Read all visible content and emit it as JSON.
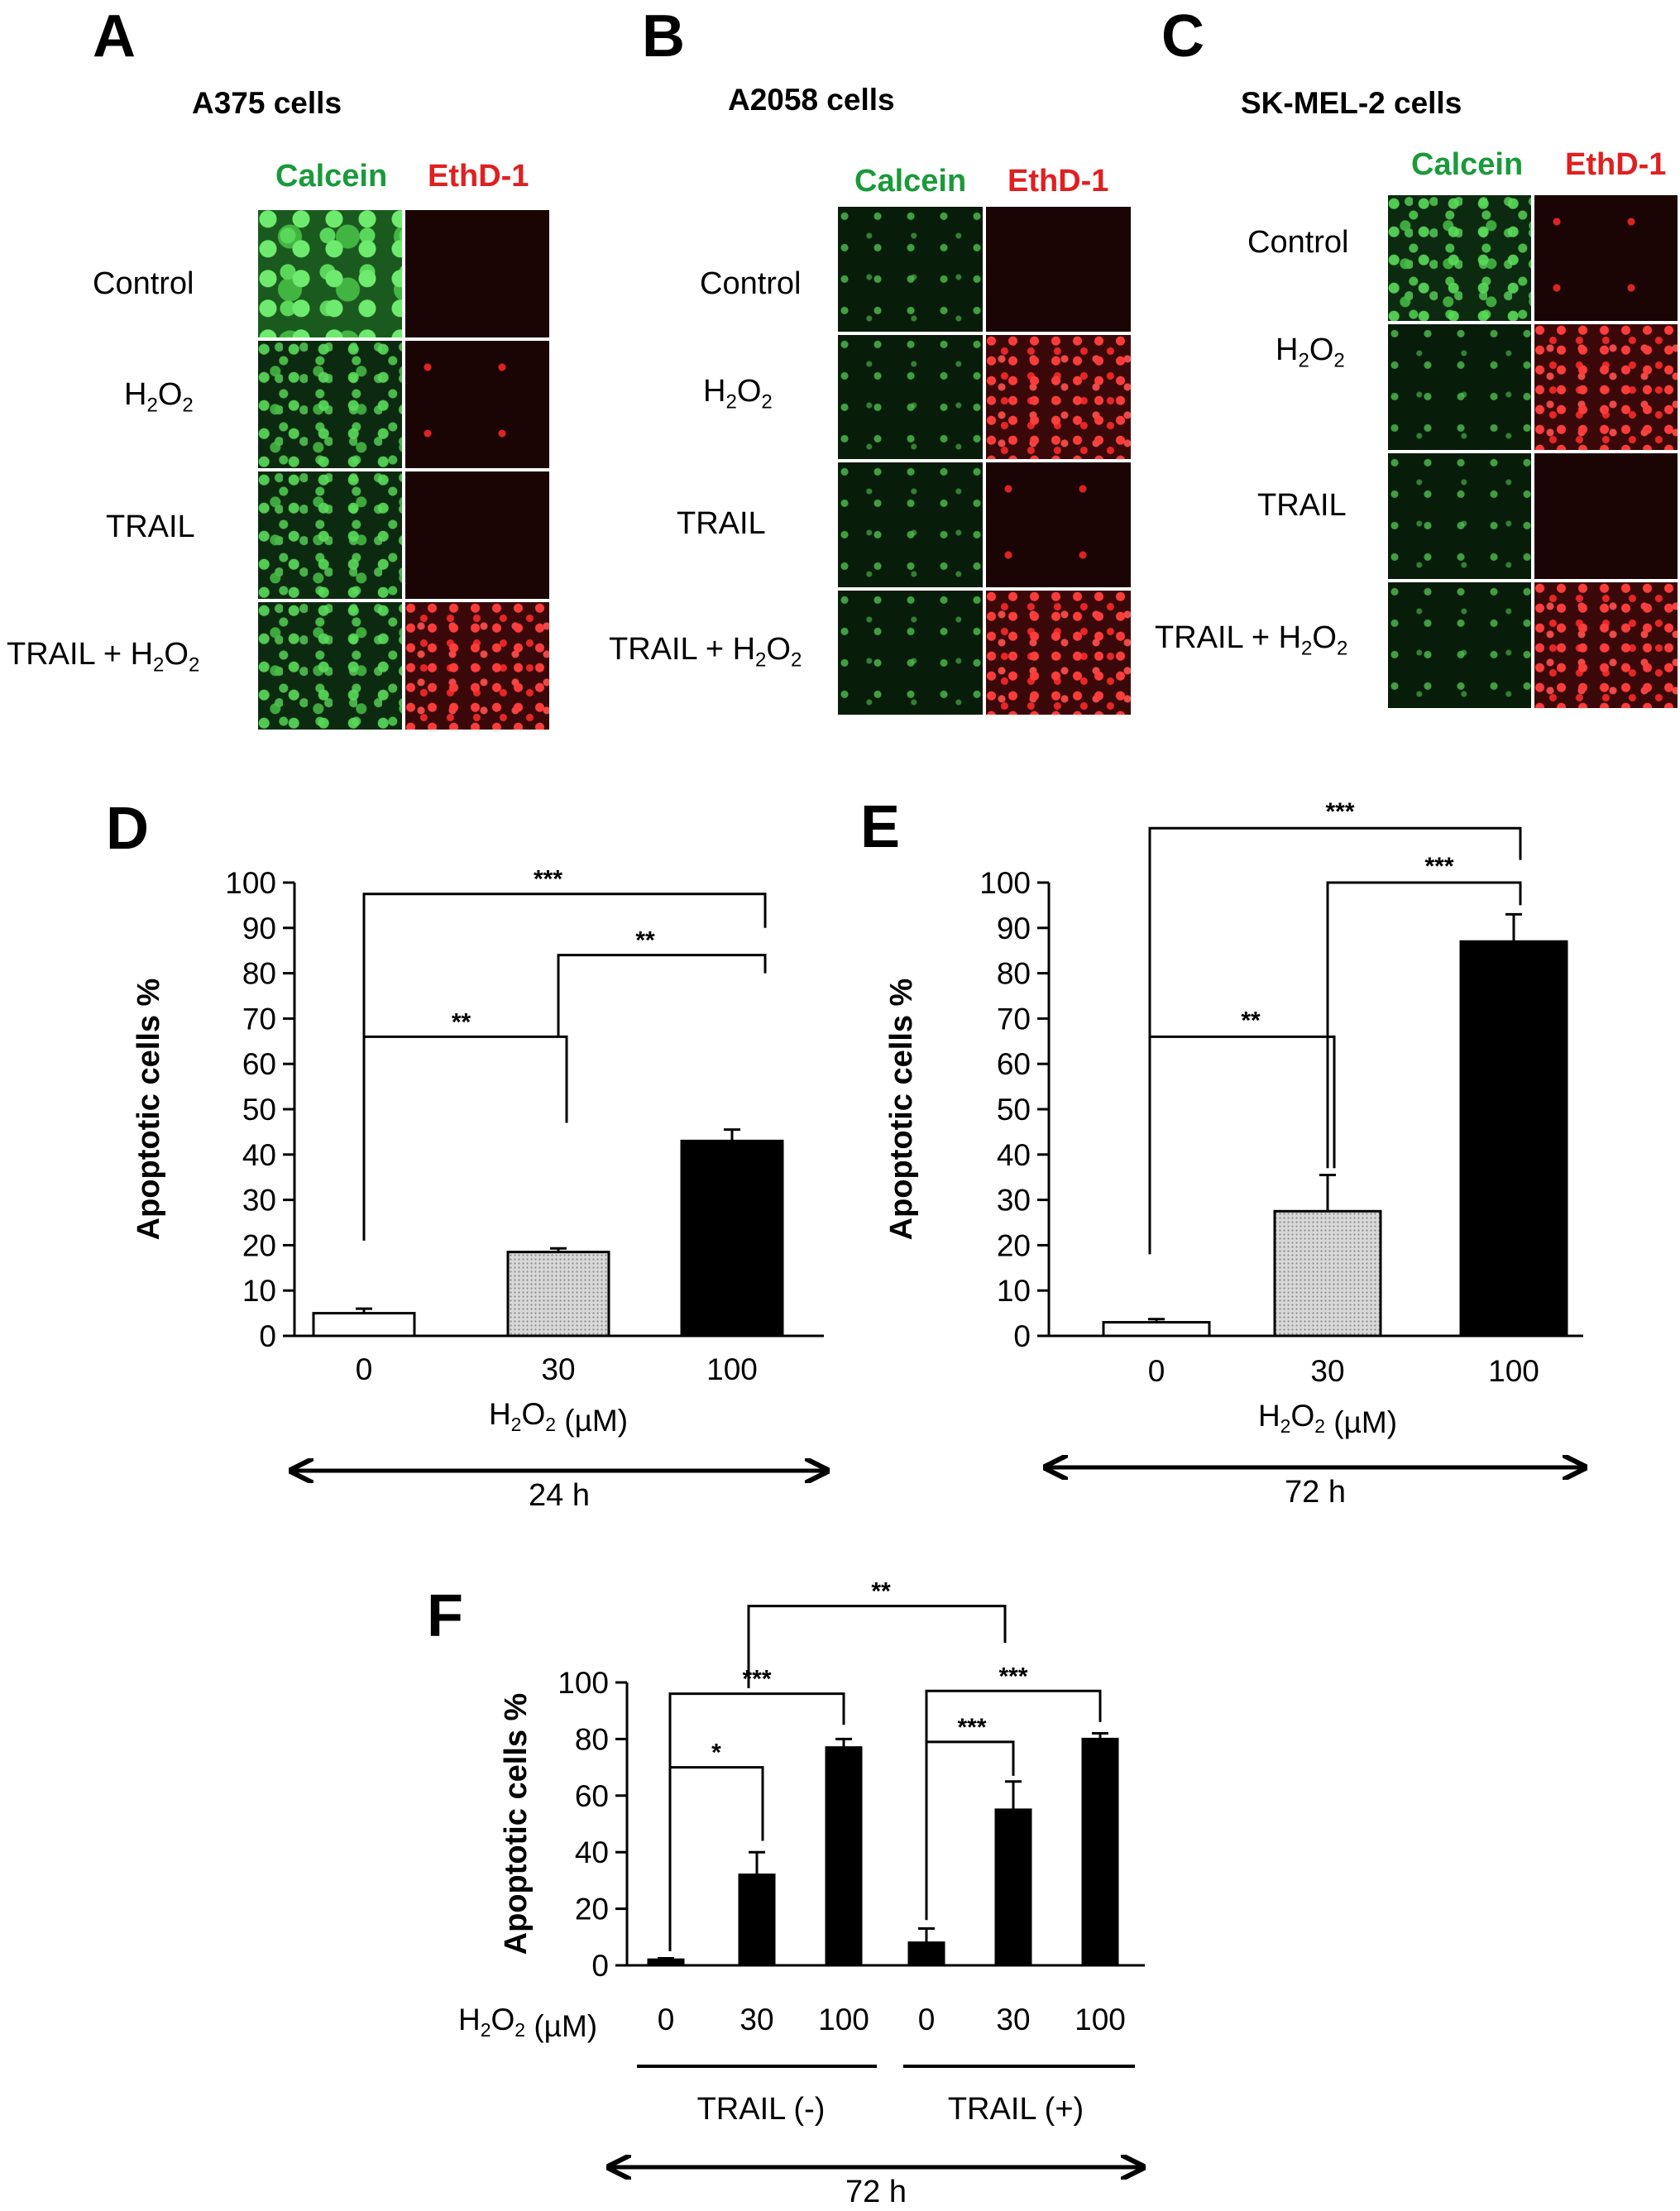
{
  "panels": {
    "A": {
      "label": "A",
      "title": "A375 cells",
      "channels": [
        "Calcein",
        "EthD-1"
      ],
      "rows": [
        "Control",
        "H2O2",
        "TRAIL",
        "TRAIL + H2O2"
      ]
    },
    "B": {
      "label": "B",
      "title": "A2058 cells",
      "channels": [
        "Calcein",
        "EthD-1"
      ],
      "rows": [
        "Control",
        "H2O2",
        "TRAIL",
        "TRAIL + H2O2"
      ]
    },
    "C": {
      "label": "C",
      "title": "SK-MEL-2 cells",
      "channels": [
        "Calcein",
        "EthD-1"
      ],
      "rows": [
        "Control",
        "H2O2",
        "TRAIL",
        "TRAIL + H2O2"
      ]
    }
  },
  "colors": {
    "calcein": "#1a9a3a",
    "ethd": "#e02020"
  },
  "chart_data": [
    {
      "label": "D",
      "type": "bar",
      "ylabel": "Apoptotic cells %",
      "xlabel": "H2O2  (µM)",
      "categories": [
        "0",
        "30",
        "100"
      ],
      "values": [
        5,
        18.5,
        43
      ],
      "errors": [
        1,
        0.8,
        2.5
      ],
      "bar_colors": [
        "#ffffff",
        "#c8c8c8",
        "#000000"
      ],
      "ylim": [
        0,
        100
      ],
      "yticks": [
        0,
        10,
        20,
        30,
        40,
        50,
        60,
        70,
        80,
        90,
        100
      ],
      "duration": "24 h",
      "sig": [
        {
          "from": 0,
          "to": 1,
          "label": "**"
        },
        {
          "from": 1,
          "to": 2,
          "label": "**"
        },
        {
          "from": 0,
          "to": 2,
          "label": "***"
        }
      ]
    },
    {
      "label": "E",
      "type": "bar",
      "ylabel": "Apoptotic cells %",
      "xlabel": "H2O2  (µM)",
      "categories": [
        "0",
        "30",
        "100"
      ],
      "values": [
        3,
        27.5,
        87
      ],
      "errors": [
        0.7,
        8,
        6
      ],
      "bar_colors": [
        "#ffffff",
        "#c8c8c8",
        "#000000"
      ],
      "ylim": [
        0,
        100
      ],
      "yticks": [
        0,
        10,
        20,
        30,
        40,
        50,
        60,
        70,
        80,
        90,
        100
      ],
      "duration": "72 h",
      "sig": [
        {
          "from": 0,
          "to": 1,
          "label": "**"
        },
        {
          "from": 1,
          "to": 2,
          "label": "***"
        },
        {
          "from": 0,
          "to": 2,
          "label": "***"
        }
      ]
    },
    {
      "label": "F",
      "type": "bar",
      "ylabel": "Apoptotic cells %",
      "xlabel_prefix": "H2O2 (µM)",
      "categories": [
        "0",
        "30",
        "100",
        "0",
        "30",
        "100"
      ],
      "values": [
        2,
        32,
        77,
        8,
        55,
        80
      ],
      "errors": [
        0.5,
        8,
        3,
        5,
        10,
        2
      ],
      "bar_colors": [
        "#000000",
        "#000000",
        "#000000",
        "#000000",
        "#000000",
        "#000000"
      ],
      "ylim": [
        0,
        100
      ],
      "yticks": [
        0,
        20,
        40,
        60,
        80,
        100
      ],
      "groups": [
        "TRAIL (-)",
        "TRAIL (+)"
      ],
      "duration": "72 h",
      "sig": [
        {
          "from": 0,
          "to": 1,
          "label": "*"
        },
        {
          "from": 0,
          "to": 2,
          "label": "***"
        },
        {
          "from": 3,
          "to": 4,
          "label": "***"
        },
        {
          "from": 3,
          "to": 5,
          "label": "***"
        },
        {
          "from": 1,
          "to": 4,
          "label": "**"
        }
      ]
    }
  ]
}
